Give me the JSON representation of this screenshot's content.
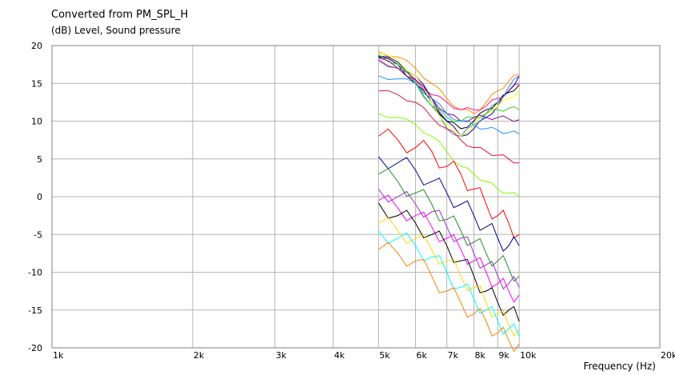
{
  "chart_data": {
    "type": "line",
    "title": "Converted from PM_SPL_H",
    "ylabel": "(dB)  Level, Sound pressure",
    "xlabel": "Frequency  (Hz)",
    "x_scale": "log",
    "xlim": [
      1000,
      20000
    ],
    "ylim": [
      -20,
      20
    ],
    "grid": true,
    "x_ticks": [
      1000,
      2000,
      3000,
      4000,
      5000,
      6000,
      7000,
      8000,
      9000,
      10000,
      20000
    ],
    "x_tick_labels": [
      "1k",
      "2k",
      "3k",
      "4k",
      "5k",
      "6k",
      "7k",
      "8k",
      "9k",
      "10k",
      "20k"
    ],
    "y_ticks": [
      20,
      15,
      10,
      5,
      0,
      -5,
      -10,
      -15,
      -20
    ],
    "y_tick_labels": [
      "20",
      "15",
      "10",
      "5",
      "0",
      "-5",
      "-10",
      "-15",
      "-20"
    ],
    "x": [
      5000,
      5500,
      6000,
      6500,
      7000,
      7500,
      8000,
      8500,
      9000,
      9500,
      10000
    ],
    "series": [
      {
        "color": "#ff8c00",
        "values": [
          19.2,
          18.5,
          17.0,
          15.0,
          13.0,
          11.5,
          11.0,
          12.5,
          14.0,
          15.3,
          16.2
        ]
      },
      {
        "color": "#000000",
        "values": [
          18.5,
          17.5,
          15.0,
          12.5,
          10.0,
          9.0,
          10.0,
          11.5,
          12.5,
          13.8,
          14.8
        ]
      },
      {
        "color": "#ff1493",
        "values": [
          18.2,
          17.0,
          15.5,
          13.5,
          12.5,
          11.5,
          11.5,
          12.0,
          13.0,
          14.0,
          15.0
        ]
      },
      {
        "color": "#0000cc",
        "values": [
          18.6,
          17.8,
          16.0,
          13.0,
          10.0,
          8.0,
          9.0,
          10.5,
          12.0,
          14.0,
          16.0
        ]
      },
      {
        "color": "#4682b4",
        "values": [
          18.0,
          17.0,
          15.3,
          12.0,
          9.0,
          8.0,
          9.5,
          11.0,
          12.5,
          14.5,
          16.0
        ]
      },
      {
        "color": "#ffff00",
        "values": [
          19.0,
          18.0,
          16.0,
          12.5,
          9.5,
          8.0,
          9.5,
          11.0,
          12.0,
          13.0,
          14.0
        ]
      },
      {
        "color": "#32cd32",
        "values": [
          18.8,
          17.5,
          15.0,
          12.0,
          10.5,
          10.0,
          10.5,
          11.0,
          11.5,
          11.7,
          11.5
        ]
      },
      {
        "color": "#8b008b",
        "values": [
          18.4,
          17.0,
          15.5,
          13.0,
          11.0,
          10.0,
          10.5,
          10.5,
          10.5,
          10.3,
          10.2
        ]
      },
      {
        "color": "#1e90ff",
        "values": [
          16.0,
          15.6,
          15.0,
          13.0,
          11.0,
          10.0,
          9.5,
          9.0,
          8.8,
          8.5,
          8.3
        ]
      },
      {
        "color": "#dc143c",
        "values": [
          14.0,
          13.5,
          12.5,
          10.5,
          9.0,
          7.5,
          6.5,
          6.0,
          5.5,
          5.0,
          4.5
        ]
      },
      {
        "color": "#7fff00",
        "values": [
          11.0,
          10.5,
          9.5,
          8.0,
          6.0,
          4.0,
          3.0,
          2.0,
          1.0,
          0.5,
          0.0
        ]
      },
      {
        "color": "#ff0000",
        "values": [
          8.0,
          7.5,
          6.5,
          6.0,
          4.0,
          3.0,
          1.0,
          -1.0,
          -2.5,
          -3.5,
          -5.0
        ]
      },
      {
        "color": "#00008b",
        "values": [
          5.3,
          4.5,
          3.5,
          2.0,
          0.5,
          -1.0,
          -2.5,
          -4.0,
          -5.5,
          -6.5,
          -6.5
        ]
      },
      {
        "color": "#228b22",
        "values": [
          3.0,
          2.0,
          0.5,
          -1.0,
          -3.0,
          -4.5,
          -6.0,
          -7.5,
          -8.5,
          -9.5,
          -10.5
        ]
      },
      {
        "color": "#9932cc",
        "values": [
          1.0,
          0.0,
          -1.0,
          -2.0,
          -4.0,
          -5.5,
          -7.5,
          -9.0,
          -10.5,
          -11.5,
          -12.0
        ]
      },
      {
        "color": "#ff00ff",
        "values": [
          -0.5,
          -1.5,
          -2.5,
          -4.0,
          -5.5,
          -7.0,
          -8.5,
          -10.0,
          -11.5,
          -12.5,
          -13.0
        ]
      },
      {
        "color": "#000000",
        "values": [
          -0.8,
          -2.5,
          -3.5,
          -5.0,
          -6.5,
          -8.5,
          -10.5,
          -12.5,
          -14.0,
          -15.0,
          -16.5
        ]
      },
      {
        "color": "#ffd700",
        "values": [
          -3.5,
          -4.5,
          -5.5,
          -7.0,
          -8.5,
          -10.5,
          -12.0,
          -14.0,
          -15.5,
          -17.0,
          -17.5
        ]
      },
      {
        "color": "#00ffff",
        "values": [
          -4.5,
          -5.5,
          -6.5,
          -8.0,
          -10.0,
          -12.0,
          -13.5,
          -15.0,
          -16.5,
          -17.5,
          -18.5
        ]
      },
      {
        "color": "#ff7f00",
        "values": [
          -7.0,
          -7.5,
          -8.5,
          -10.5,
          -12.5,
          -14.0,
          -15.5,
          -16.5,
          -18.0,
          -19.0,
          -19.5
        ]
      }
    ]
  }
}
